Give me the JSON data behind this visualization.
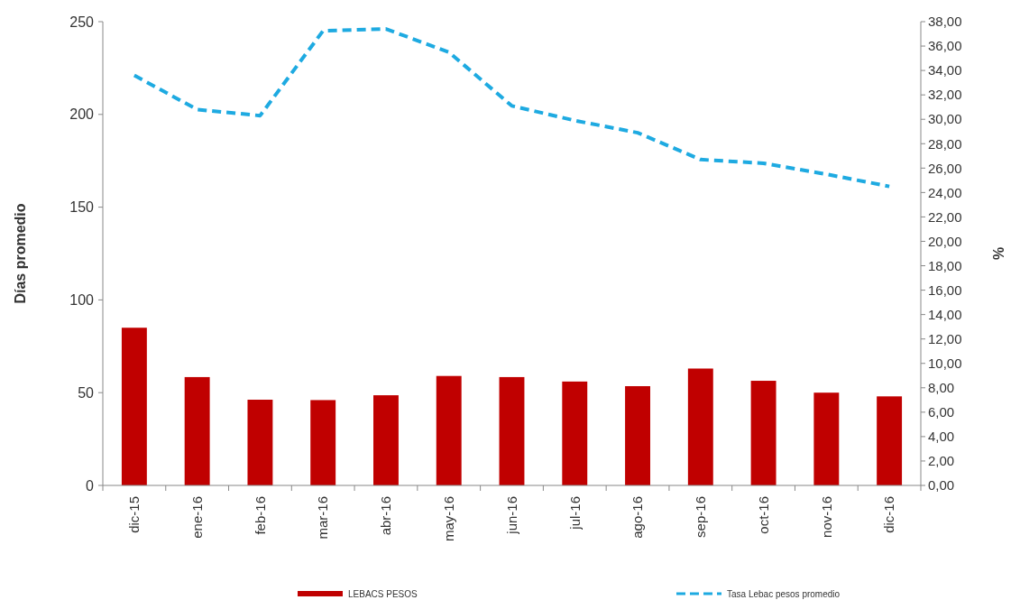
{
  "chart_data": {
    "type": "bar",
    "ylabel": "Días promedio",
    "y2label": "%",
    "categories": [
      "dic-15",
      "ene-16",
      "feb-16",
      "mar-16",
      "abr-16",
      "may-16",
      "jun-16",
      "jul-16",
      "ago-16",
      "sep-16",
      "oct-16",
      "nov-16",
      "dic-16"
    ],
    "series": [
      {
        "name": "LEBACS PESOS",
        "color": "#c00000",
        "values": [
          85,
          58.4,
          46.2,
          46,
          48.6,
          59,
          58.4,
          56,
          53.5,
          63,
          56.4,
          50,
          48
        ]
      },
      {
        "name": "Tasa Lebac pesos promedio",
        "color": "#1eaae1",
        "type": "line",
        "axis": "y2",
        "line_style": "dashed",
        "values": [
          33.6,
          30.8,
          30.3,
          37.25,
          37.4,
          35.5,
          31.1,
          29.9,
          28.9,
          26.7,
          26.4,
          25.5,
          24.5
        ]
      }
    ],
    "ylim": [
      0,
      250
    ],
    "yticks": [
      0,
      50,
      100,
      150,
      200,
      250
    ],
    "y2lim": [
      0,
      38
    ],
    "y2ticks": [
      {
        "value": 0,
        "label": "0,00"
      },
      {
        "value": 2,
        "label": "2,00"
      },
      {
        "value": 4,
        "label": "4,00"
      },
      {
        "value": 6,
        "label": "6,00"
      },
      {
        "value": 8,
        "label": "8,00"
      },
      {
        "value": 10,
        "label": "10,00"
      },
      {
        "value": 12,
        "label": "12,00"
      },
      {
        "value": 14,
        "label": "14,00"
      },
      {
        "value": 16,
        "label": "16,00"
      },
      {
        "value": 18,
        "label": "18,00"
      },
      {
        "value": 20,
        "label": "20,00"
      },
      {
        "value": 22,
        "label": "22,00"
      },
      {
        "value": 24,
        "label": "24,00"
      },
      {
        "value": 26,
        "label": "26,00"
      },
      {
        "value": 28,
        "label": "28,00"
      },
      {
        "value": 30,
        "label": "30,00"
      },
      {
        "value": 32,
        "label": "32,00"
      },
      {
        "value": 34,
        "label": "34,00"
      },
      {
        "value": 36,
        "label": "36,00"
      },
      {
        "value": 38,
        "label": "38,00"
      }
    ],
    "legend": "bottom",
    "grid": false
  }
}
